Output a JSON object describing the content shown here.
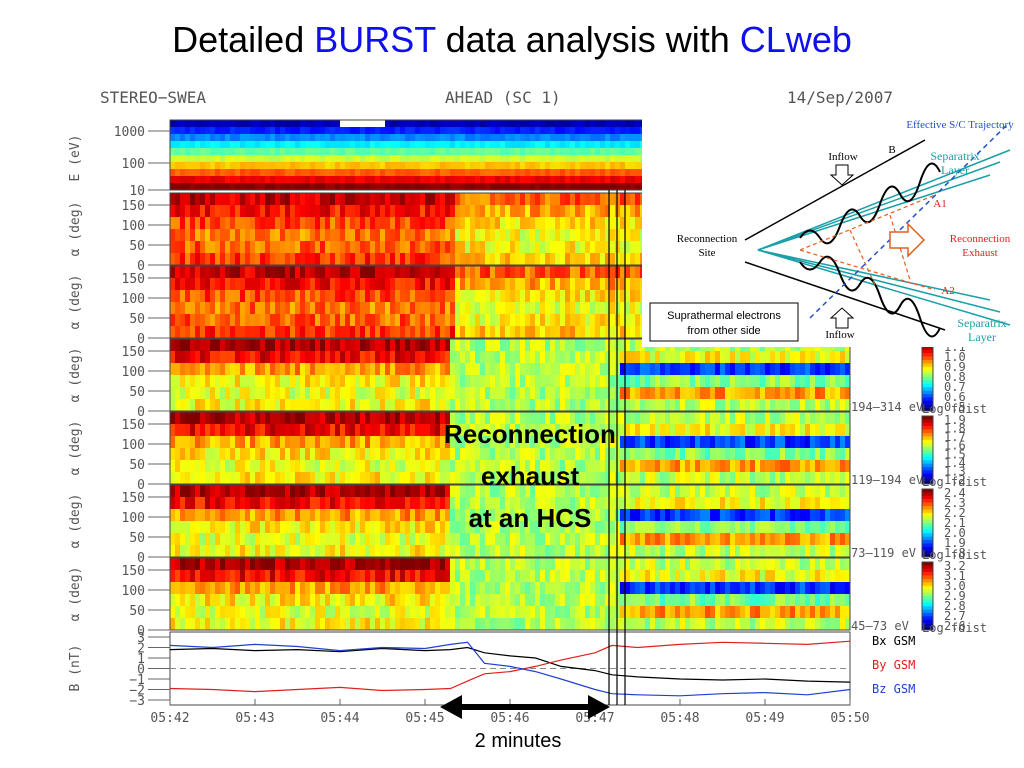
{
  "title": {
    "prefix": "Detailed",
    "highlight1": "BURST",
    "middle": "data analysis with",
    "highlight2": "CLweb"
  },
  "plot_header": {
    "instrument": "STEREO−SWEA",
    "spacecraft": "AHEAD (SC 1)",
    "date": "14/Sep/2007"
  },
  "energy_panel": {
    "label": "E (eV)",
    "ticks": [
      "1000",
      "100",
      "10"
    ]
  },
  "pitch_panels": [
    {
      "label": "α (deg)",
      "ticks": [
        "150",
        "100",
        "50",
        "0"
      ]
    },
    {
      "label": "α (deg)",
      "ticks": [
        "150",
        "100",
        "50",
        "0"
      ]
    },
    {
      "label": "α (deg)",
      "ticks": [
        "150",
        "100",
        "50",
        "0"
      ],
      "band": "194–314 eV",
      "colorbar": {
        "title": "Log fdist",
        "ticks": [
          "1.1",
          "1.0",
          "0.9",
          "0.8",
          "0.7",
          "0.6",
          "0.5"
        ]
      }
    },
    {
      "label": "α (deg)",
      "ticks": [
        "150",
        "100",
        "50",
        "0"
      ],
      "band": "119–194 eV",
      "colorbar": {
        "title": "Log fdist",
        "ticks": [
          "1.9",
          "1.8",
          "1.7",
          "1.6",
          "1.5",
          "1.4",
          "1.3",
          "1.2"
        ]
      }
    },
    {
      "label": "α (deg)",
      "ticks": [
        "150",
        "100",
        "50",
        "0"
      ],
      "band": "73–119 eV",
      "colorbar": {
        "title": "Log fdist",
        "ticks": [
          "2.4",
          "2.3",
          "2.2",
          "2.1",
          "2.0",
          "1.9",
          "1.8"
        ]
      }
    },
    {
      "label": "α (deg)",
      "ticks": [
        "150",
        "100",
        "50",
        "0"
      ],
      "band": "45–73 eV",
      "colorbar": {
        "title": "Log fdist",
        "ticks": [
          "3.2",
          "3.1",
          "3.0",
          "2.9",
          "2.8",
          "2.7",
          "2.6"
        ]
      }
    }
  ],
  "chart_data": {
    "type": "line",
    "ylabel": "B (nT)",
    "x": [
      0,
      0.5,
      1,
      1.5,
      2,
      2.5,
      3,
      3.3,
      3.5,
      3.7,
      4,
      4.3,
      4.6,
      5,
      5.2,
      5.5,
      6,
      6.5,
      7,
      7.5,
      8
    ],
    "series": [
      {
        "name": "Bx GSM",
        "color": "#000000",
        "values": [
          1.8,
          1.9,
          1.7,
          1.8,
          1.6,
          1.9,
          1.7,
          1.8,
          2.0,
          1.5,
          1.2,
          1.0,
          0.2,
          -0.2,
          -0.6,
          -0.8,
          -1.0,
          -1.1,
          -1.0,
          -1.2,
          -1.3
        ]
      },
      {
        "name": "By GSM",
        "color": "#e02020",
        "values": [
          -1.9,
          -2.0,
          -2.2,
          -2.0,
          -1.8,
          -2.1,
          -2.0,
          -1.9,
          -1.2,
          -0.5,
          -0.3,
          0.2,
          0.8,
          1.5,
          2.2,
          2.0,
          2.3,
          2.5,
          2.4,
          2.3,
          2.6
        ]
      },
      {
        "name": "Bz GSM",
        "color": "#2040d0",
        "values": [
          2.2,
          2.0,
          2.3,
          2.1,
          1.7,
          2.0,
          1.9,
          2.3,
          2.5,
          0.5,
          0.2,
          -0.3,
          -1.0,
          -2.0,
          -2.4,
          -2.5,
          -2.6,
          -2.4,
          -2.3,
          -2.5,
          -2.0
        ]
      }
    ],
    "xlim": [
      0,
      8
    ],
    "ylim": [
      -3,
      3
    ],
    "xticks": [
      {
        "value": 0,
        "label": "05:42"
      },
      {
        "value": 1,
        "label": "05:43"
      },
      {
        "value": 2,
        "label": "05:44"
      },
      {
        "value": 3,
        "label": "05:45"
      },
      {
        "value": 4,
        "label": "05:46"
      },
      {
        "value": 5,
        "label": "05:47"
      },
      {
        "value": 6,
        "label": "05:48"
      },
      {
        "value": 7,
        "label": "05:49"
      },
      {
        "value": 8,
        "label": "05:50"
      }
    ],
    "yticks": [
      3,
      2,
      1,
      0,
      {
        "value": -1,
        "label": "−1"
      },
      {
        "value": -2,
        "label": "−2"
      },
      {
        "value": -3,
        "label": "−3"
      }
    ]
  },
  "annotations": {
    "exhaust": [
      "Reconnection",
      "exhaust",
      "at an HCS"
    ],
    "duration": "2 minutes"
  },
  "inset": {
    "trajectory": "Effective S/C Trajectory",
    "inflow_top": "Inflow",
    "field": "B",
    "separatrix_upper": [
      "Separatrix",
      "Layer"
    ],
    "a1": "A1",
    "site": [
      "Reconnection",
      "Site"
    ],
    "exhaust": [
      "Reconnection",
      "Exhaust"
    ],
    "a2": "A2",
    "suprathermal": [
      "Suprathermal electrons",
      "from other side"
    ],
    "inflow_bottom": "Inflow",
    "separatrix_lower": [
      "Separatrix",
      "Layer"
    ]
  }
}
